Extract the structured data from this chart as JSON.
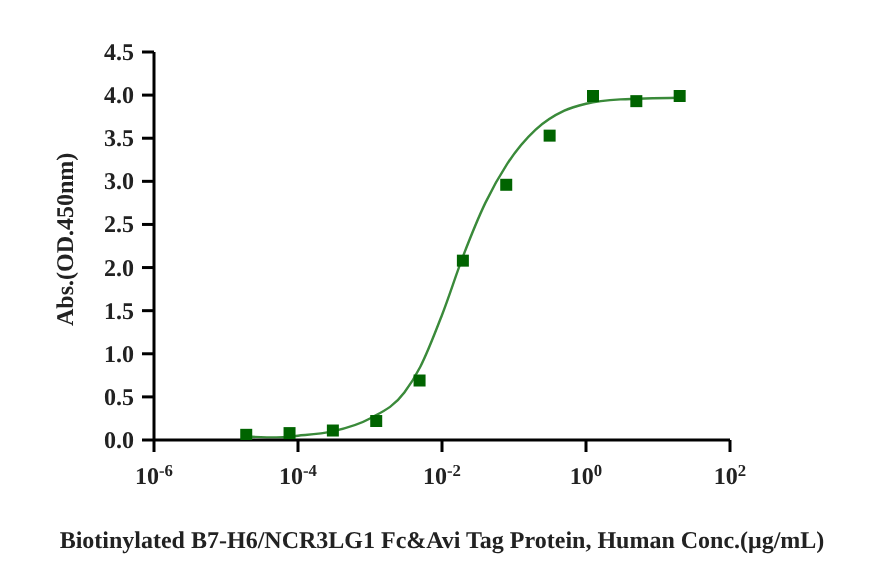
{
  "chart_data": {
    "type": "scatter",
    "xlabel": "Biotinylated B7-H6/NCR3LG1 Fc&Avi Tag Protein, Human Conc.(μg/mL)",
    "ylabel": "Abs.(OD.450nm)",
    "log": "x",
    "xlim": [
      1e-06,
      100
    ],
    "xticks": [
      {
        "value": 1e-06,
        "label": "10$^{-6}$"
      },
      {
        "value": 0.0001,
        "label": "10$^{-4}$"
      },
      {
        "value": 0.01,
        "label": "10$^{-2}$"
      },
      {
        "value": 1,
        "label": "10$^{0}$"
      },
      {
        "value": 100,
        "label": "10$^{2}$"
      }
    ],
    "ylim": [
      0,
      4.5
    ],
    "yticks": [
      {
        "value": 0,
        "label": "0.0"
      },
      {
        "value": 0.5,
        "label": "0.5"
      },
      {
        "value": 1,
        "label": "1.0"
      },
      {
        "value": 1.5,
        "label": "1.5"
      },
      {
        "value": 2,
        "label": "2.0"
      },
      {
        "value": 2.5,
        "label": "2.5"
      },
      {
        "value": 3,
        "label": "3.0"
      },
      {
        "value": 3.5,
        "label": "3.5"
      },
      {
        "value": 4,
        "label": "4.0"
      },
      {
        "value": 4.5,
        "label": "4.5"
      }
    ],
    "series": [
      {
        "marker": "square",
        "color": "#006400",
        "x": [
          1.91e-05,
          7.63e-05,
          0.000305,
          0.00122,
          0.00488,
          0.0195,
          0.078,
          0.3125,
          1.25,
          5,
          20
        ],
        "values": [
          0.06,
          0.08,
          0.11,
          0.22,
          0.69,
          2.08,
          2.96,
          3.53,
          3.99,
          3.93,
          3.99
        ]
      },
      {
        "type": "line",
        "color": "#3a8a3a",
        "x": [
          1.91e-05,
          5e-05,
          0.0001,
          0.0003,
          0.001,
          0.003,
          0.005,
          0.01,
          0.02,
          0.04,
          0.08,
          0.2,
          0.5,
          1,
          3,
          20
        ],
        "values": [
          0.04,
          0.03,
          0.05,
          0.1,
          0.25,
          0.55,
          0.85,
          1.45,
          2.15,
          2.75,
          3.2,
          3.6,
          3.82,
          3.9,
          3.95,
          3.97
        ]
      }
    ]
  }
}
